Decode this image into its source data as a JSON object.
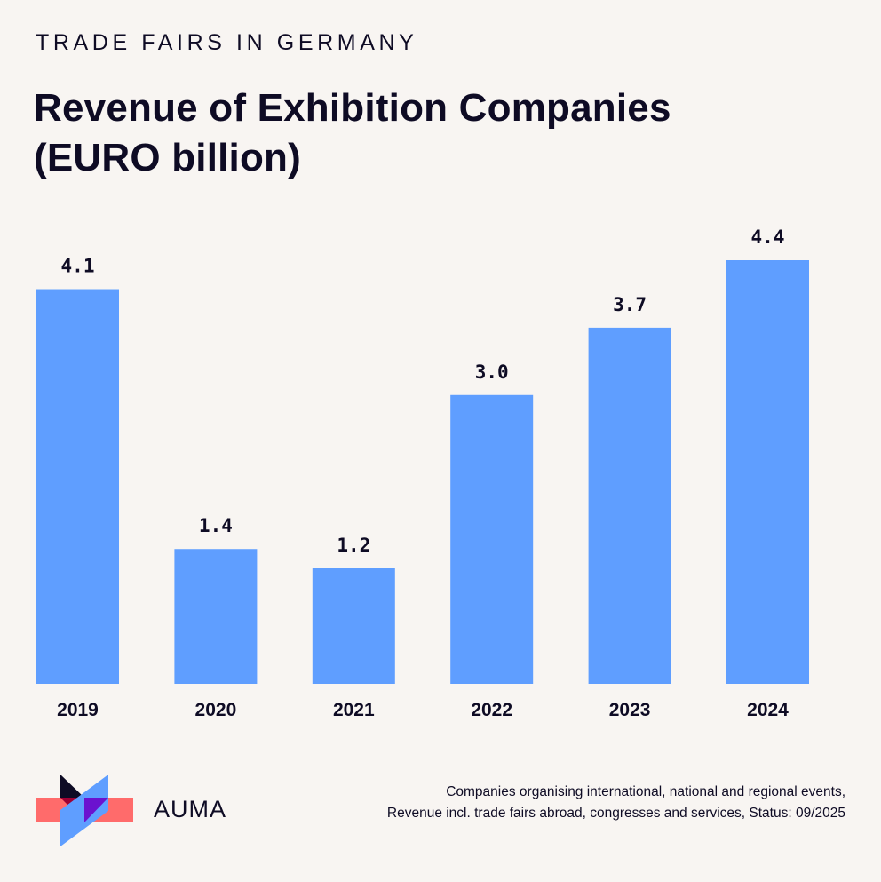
{
  "header": {
    "kicker": "TRADE FAIRS IN GERMANY",
    "title_line1": "Revenue of Exhibition Companies",
    "title_line2": "(EURO billion)"
  },
  "colors": {
    "background": "#f8f5f2",
    "bar": "#5f9eff",
    "text": "#0e0b24",
    "logo_red": "#ff6b6b",
    "logo_blue": "#5f9eff",
    "logo_dark": "#0e0b24",
    "logo_purple": "#6b12cf",
    "logo_darkred": "#9e0033"
  },
  "chart_data": {
    "type": "bar",
    "title": "Revenue of Exhibition Companies (EURO billion)",
    "xlabel": "",
    "ylabel": "EURO billion",
    "categories": [
      "2019",
      "2020",
      "2021",
      "2022",
      "2023",
      "2024"
    ],
    "values": [
      4.1,
      1.4,
      1.2,
      3.0,
      3.7,
      4.4
    ],
    "value_labels": [
      "4.1",
      "1.4",
      "1.2",
      "3.0",
      "3.7",
      "4.4"
    ],
    "ylim": [
      0,
      4.4
    ],
    "grid": false,
    "legend": "none"
  },
  "footer": {
    "brand": "AUMA",
    "note_line1": "Companies organising international, national and regional events,",
    "note_line2": "Revenue incl. trade fairs abroad, congresses and services, Status: 09/2025"
  }
}
